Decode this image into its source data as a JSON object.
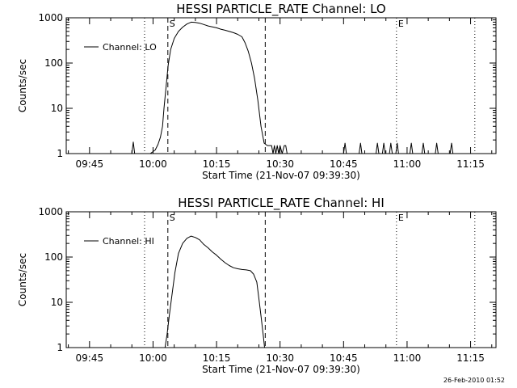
{
  "footer": {
    "timestamp": "26-Feb-2010 01:52"
  },
  "chart_data": [
    {
      "type": "line",
      "title": "HESSI PARTICLE_RATE Channel: LO",
      "xlabel": "Start Time (21-Nov-07 09:39:30)",
      "ylabel": "Counts/sec",
      "yscale": "log",
      "ylim": [
        1,
        1000
      ],
      "xlim": [
        "09:39:30",
        "11:21:00"
      ],
      "x_ticks": [
        "09:45",
        "10:00",
        "10:15",
        "10:30",
        "10:45",
        "11:00",
        "11:15"
      ],
      "y_ticks": [
        "1",
        "10",
        "100",
        "1000"
      ],
      "legend": {
        "label": "Channel: LO",
        "placement": "top-left"
      },
      "markers": [
        {
          "label": "S",
          "time": "10:03:30",
          "style": "dashed"
        },
        {
          "label": "",
          "time": "10:26:30",
          "style": "dashed"
        },
        {
          "label": "",
          "time": "09:58:00",
          "style": "dotted"
        },
        {
          "label": "E",
          "time": "10:57:30",
          "style": "dotted"
        },
        {
          "label": "",
          "time": "11:16:00",
          "style": "dotted"
        }
      ],
      "series": [
        {
          "name": "Channel: LO",
          "x": [
            "09:55:00",
            "09:55:20",
            "09:55:40",
            "09:58:00",
            "09:59:20",
            "10:00:30",
            "10:01:10",
            "10:01:45",
            "10:02:15",
            "10:02:35",
            "10:03:05",
            "10:03:35",
            "10:04:10",
            "10:05:00",
            "10:06:00",
            "10:07:00",
            "10:08:00",
            "10:09:00",
            "10:10:00",
            "10:11:00",
            "10:12:00",
            "10:13:00",
            "10:14:00",
            "10:15:00",
            "10:16:00",
            "10:17:00",
            "10:18:00",
            "10:19:00",
            "10:20:00",
            "10:21:00",
            "10:21:45",
            "10:22:30",
            "10:23:15",
            "10:24:00",
            "10:24:45",
            "10:25:30",
            "10:26:15",
            "10:27:00",
            "10:27:30",
            "10:28:00",
            "10:28:20",
            "10:28:40",
            "10:29:00",
            "10:29:20",
            "10:29:40",
            "10:30:00",
            "10:30:30",
            "10:31:00",
            "10:31:20",
            "10:31:40",
            "10:32:00",
            "10:32:30",
            "10:45:00",
            "10:45:20",
            "10:45:40",
            "10:48:40",
            "10:49:00",
            "10:49:20",
            "10:52:40",
            "10:53:00",
            "10:53:20",
            "10:54:10",
            "10:54:30",
            "10:54:50",
            "10:55:50",
            "10:56:10",
            "10:56:30",
            "10:57:20",
            "10:57:40",
            "10:58:00",
            "11:00:40",
            "11:01:00",
            "11:01:20",
            "11:03:30",
            "11:03:50",
            "11:04:10",
            "11:06:40",
            "11:07:00",
            "11:07:20",
            "11:10:10",
            "11:10:30",
            "11:10:50"
          ],
          "y": [
            1,
            1.8,
            1,
            1,
            1,
            1.2,
            1.6,
            2.3,
            4,
            10,
            30,
            90,
            200,
            350,
            500,
            620,
            730,
            800,
            790,
            760,
            710,
            660,
            630,
            600,
            560,
            530,
            500,
            470,
            430,
            380,
            280,
            180,
            100,
            45,
            15,
            4,
            1.7,
            1.5,
            1.5,
            1.5,
            1,
            1.5,
            1,
            1.5,
            1,
            1.5,
            1,
            1.5,
            1.5,
            1,
            1,
            1,
            1,
            1.7,
            1,
            1,
            1.7,
            1,
            1,
            1.7,
            1,
            1,
            1.7,
            1,
            1,
            1.7,
            1,
            1,
            1.7,
            1,
            1,
            1.7,
            1,
            1,
            1.7,
            1,
            1,
            1.7,
            1,
            1,
            1.7,
            1
          ]
        }
      ]
    },
    {
      "type": "line",
      "title": "HESSI PARTICLE_RATE Channel: HI",
      "xlabel": "Start Time (21-Nov-07 09:39:30)",
      "ylabel": "Counts/sec",
      "yscale": "log",
      "ylim": [
        1,
        1000
      ],
      "xlim": [
        "09:39:30",
        "11:21:00"
      ],
      "x_ticks": [
        "09:45",
        "10:00",
        "10:15",
        "10:30",
        "10:45",
        "11:00",
        "11:15"
      ],
      "y_ticks": [
        "1",
        "10",
        "100",
        "1000"
      ],
      "legend": {
        "label": "Channel: HI",
        "placement": "top-left"
      },
      "markers": [
        {
          "label": "S",
          "time": "10:03:30",
          "style": "dashed"
        },
        {
          "label": "",
          "time": "10:26:30",
          "style": "dashed"
        },
        {
          "label": "",
          "time": "09:58:00",
          "style": "dotted"
        },
        {
          "label": "E",
          "time": "10:57:30",
          "style": "dotted"
        },
        {
          "label": "",
          "time": "11:16:00",
          "style": "dotted"
        }
      ],
      "series": [
        {
          "name": "Channel: HI",
          "x": [
            "10:02:50",
            "10:03:20",
            "10:03:50",
            "10:04:30",
            "10:05:10",
            "10:06:00",
            "10:07:00",
            "10:08:00",
            "10:09:00",
            "10:10:00",
            "10:11:00",
            "10:12:00",
            "10:13:00",
            "10:14:00",
            "10:15:00",
            "10:16:00",
            "10:17:00",
            "10:18:00",
            "10:19:00",
            "10:20:00",
            "10:21:00",
            "10:22:00",
            "10:23:00",
            "10:23:45",
            "10:24:30",
            "10:25:00",
            "10:25:30",
            "10:26:00",
            "10:26:20"
          ],
          "y": [
            1,
            2,
            5,
            15,
            45,
            120,
            200,
            260,
            290,
            270,
            240,
            190,
            160,
            130,
            110,
            90,
            75,
            65,
            58,
            55,
            53,
            52,
            50,
            42,
            28,
            12,
            5,
            2,
            1
          ]
        }
      ]
    }
  ]
}
